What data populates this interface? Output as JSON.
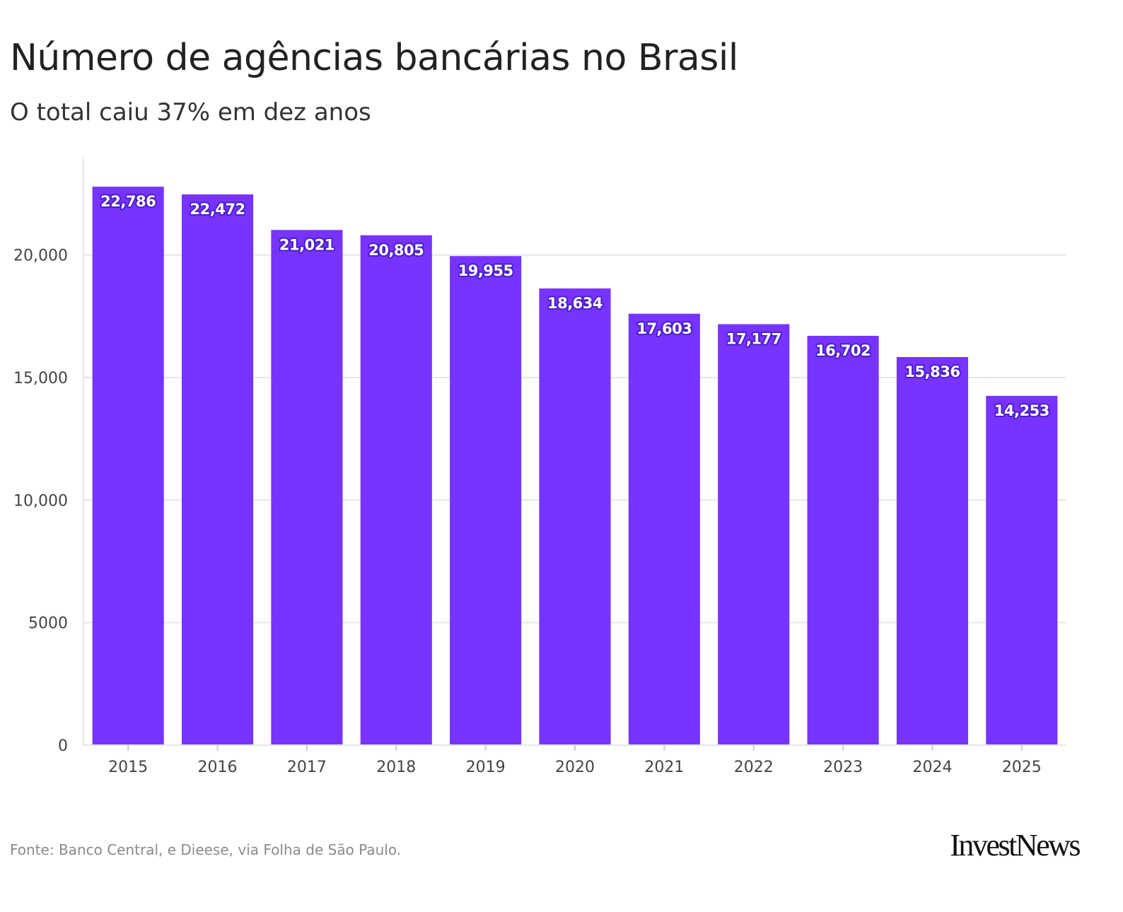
{
  "chart_data": {
    "type": "bar",
    "title": "Número de agências bancárias no Brasil",
    "subtitle": "O total caiu 37% em dez anos",
    "categories": [
      "2015",
      "2016",
      "2017",
      "2018",
      "2019",
      "2020",
      "2021",
      "2022",
      "2023",
      "2024",
      "2025"
    ],
    "values": [
      22786,
      22472,
      21021,
      20805,
      19955,
      18634,
      17603,
      17177,
      16702,
      15836,
      14253
    ],
    "value_labels": [
      "22,786",
      "22,472",
      "21,021",
      "20,805",
      "19,955",
      "18,634",
      "17,603",
      "17,177",
      "16,702",
      "15,836",
      "14,253"
    ],
    "ylim": [
      0,
      24000
    ],
    "yticks": [
      0,
      5000,
      10000,
      15000,
      20000
    ],
    "ytick_labels": [
      "0",
      "5000",
      "10,000",
      "15,000",
      "20,000"
    ],
    "xlabel": "",
    "ylabel": "",
    "grid": true,
    "bar_color": "#7733ff",
    "source": "Fonte: Banco Central, e Dieese, via Folha de São Paulo."
  },
  "branding": {
    "logo_text": "InvestNews"
  }
}
